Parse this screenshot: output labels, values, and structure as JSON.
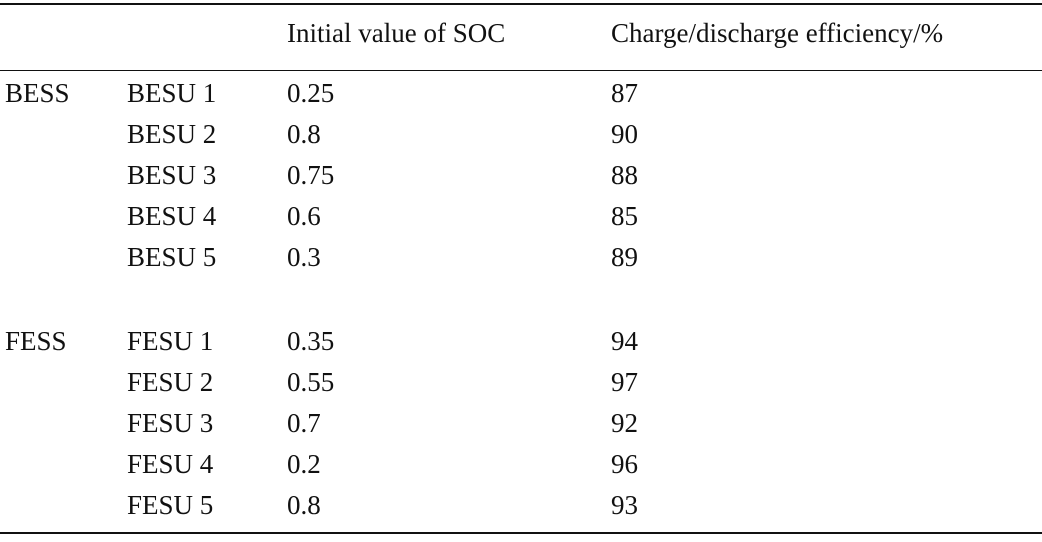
{
  "table": {
    "headers": [
      "",
      "",
      "Initial value of SOC",
      "Charge/discharge efficiency/%"
    ],
    "groups": [
      {
        "name": "BESS",
        "rows": [
          {
            "unit": "BESU 1",
            "soc": "0.25",
            "efficiency": "87"
          },
          {
            "unit": "BESU 2",
            "soc": "0.8",
            "efficiency": "90"
          },
          {
            "unit": "BESU 3",
            "soc": "0.75",
            "efficiency": "88"
          },
          {
            "unit": "BESU 4",
            "soc": "0.6",
            "efficiency": "85"
          },
          {
            "unit": "BESU 5",
            "soc": "0.3",
            "efficiency": "89"
          }
        ]
      },
      {
        "name": "FESS",
        "rows": [
          {
            "unit": "FESU 1",
            "soc": "0.35",
            "efficiency": "94"
          },
          {
            "unit": "FESU 2",
            "soc": "0.55",
            "efficiency": "97"
          },
          {
            "unit": "FESU 3",
            "soc": "0.7",
            "efficiency": "92"
          },
          {
            "unit": "FESU 4",
            "soc": "0.2",
            "efficiency": "96"
          },
          {
            "unit": "FESU 5",
            "soc": "0.8",
            "efficiency": "93"
          }
        ]
      }
    ]
  }
}
